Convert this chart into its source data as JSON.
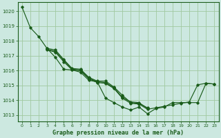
{
  "title": "Graphe pression niveau de la mer (hPa)",
  "background_color": "#cce8e0",
  "line_color": "#1a5c1a",
  "grid_color": "#a0c8a0",
  "xlim": [
    -0.5,
    23.5
  ],
  "ylim": [
    1012.6,
    1020.6
  ],
  "yticks": [
    1013,
    1014,
    1015,
    1016,
    1017,
    1018,
    1019,
    1020
  ],
  "xticks": [
    0,
    1,
    2,
    3,
    4,
    5,
    6,
    7,
    8,
    9,
    10,
    11,
    12,
    13,
    14,
    15,
    16,
    17,
    18,
    19,
    20,
    21,
    22,
    23
  ],
  "series": [
    {
      "x": [
        0,
        1,
        2,
        3,
        4,
        5,
        6,
        7,
        8,
        9,
        10,
        11,
        12,
        13,
        14,
        15,
        16,
        17,
        18,
        19,
        20,
        21,
        22,
        23
      ],
      "y": [
        1020.3,
        1018.9,
        1018.3,
        1017.5,
        1016.9,
        1016.1,
        1016.05,
        1015.9,
        1015.35,
        1015.25,
        1014.15,
        1013.85,
        1013.55,
        1013.35,
        1013.55,
        1013.1,
        1013.45,
        1013.55,
        1013.85,
        1013.85,
        1013.85,
        1013.85,
        1015.15,
        1015.1
      ]
    },
    {
      "x": [
        3,
        4,
        5,
        6,
        7,
        8,
        9,
        10,
        11,
        12,
        13,
        14,
        15
      ],
      "y": [
        1017.5,
        1017.4,
        1016.75,
        1016.15,
        1016.1,
        1015.55,
        1015.3,
        1015.3,
        1014.9,
        1014.35,
        1013.85,
        1013.8,
        1013.5
      ]
    },
    {
      "x": [
        3,
        4,
        5,
        6,
        7,
        8,
        9,
        10,
        11,
        12,
        13,
        14,
        15
      ],
      "y": [
        1017.45,
        1017.3,
        1016.7,
        1016.1,
        1016.05,
        1015.5,
        1015.25,
        1015.2,
        1014.85,
        1014.2,
        1013.9,
        1013.85,
        1013.45
      ]
    },
    {
      "x": [
        3,
        4,
        5,
        6,
        7,
        8,
        9,
        10,
        11,
        12,
        13,
        14,
        15,
        16,
        17,
        18,
        19,
        20,
        21,
        22,
        23
      ],
      "y": [
        1017.4,
        1017.25,
        1016.6,
        1016.05,
        1016.0,
        1015.45,
        1015.2,
        1015.15,
        1014.8,
        1014.15,
        1013.8,
        1013.75,
        1013.4,
        1013.5,
        1013.6,
        1013.7,
        1013.8,
        1013.9,
        1015.05,
        1015.15,
        1015.1
      ]
    }
  ]
}
